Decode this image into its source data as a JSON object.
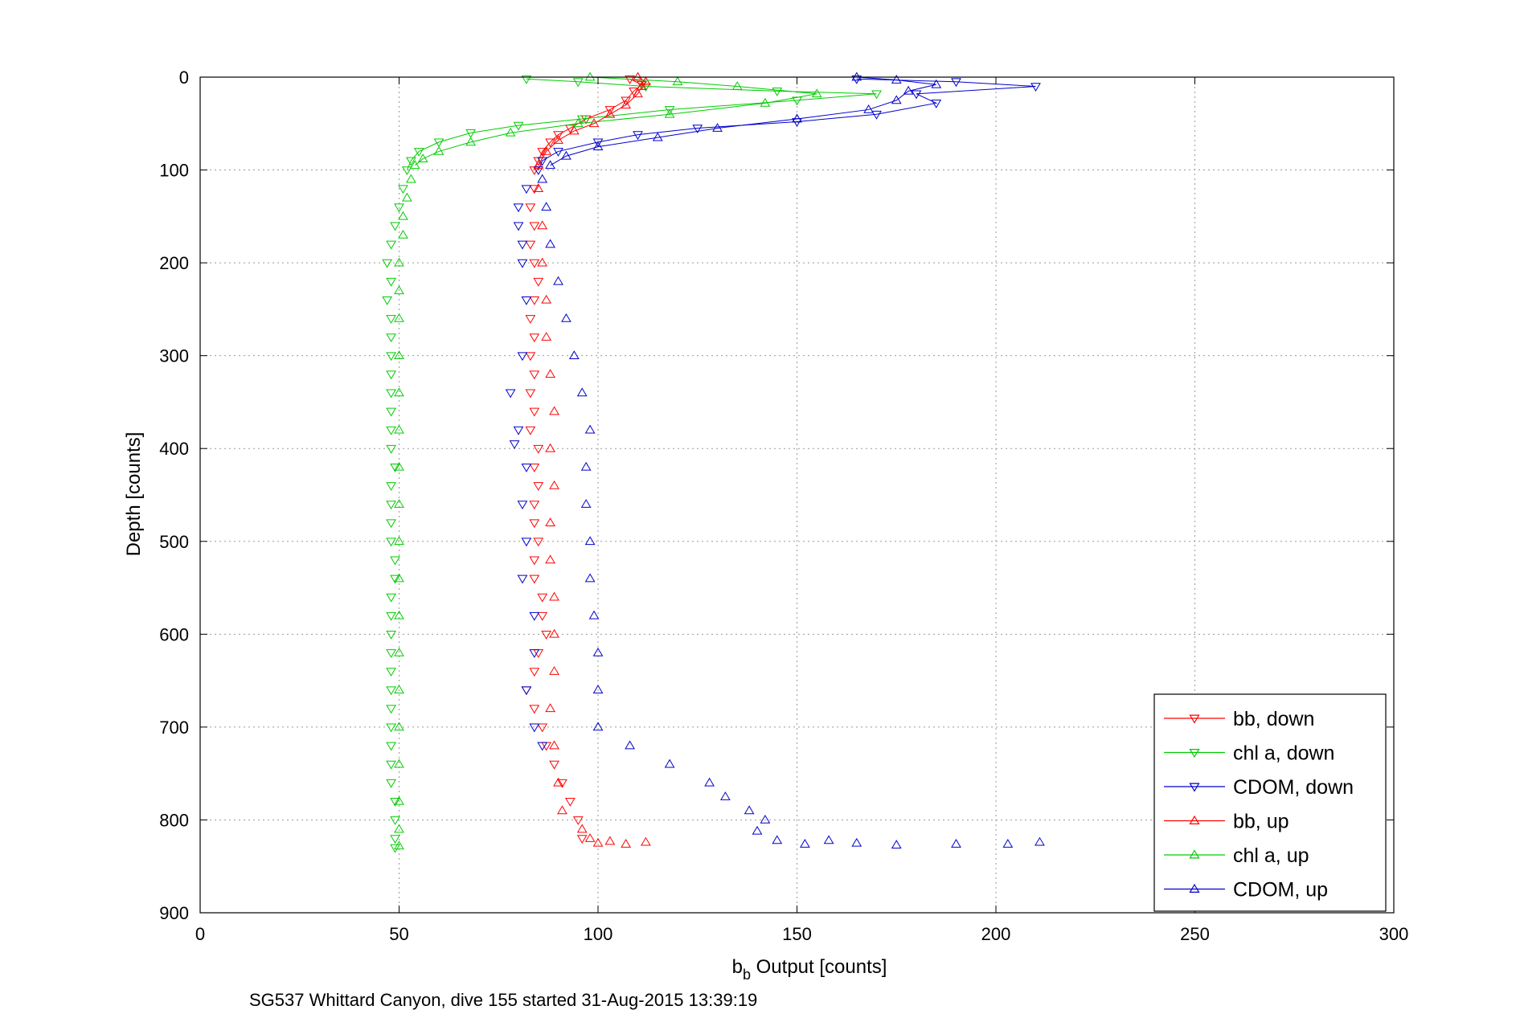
{
  "chart_data": {
    "type": "scatter",
    "xlabel_main": "b",
    "xlabel_sub": "b",
    "xlabel_rest": " Output [counts]",
    "ylabel": "Depth [counts]",
    "caption": "SG537 Whittard Canyon, dive 155 started 31-Aug-2015 13:39:19",
    "xlim": [
      0,
      300
    ],
    "ylim": [
      0,
      900
    ],
    "y_reversed": true,
    "grid": true,
    "legend_position": "bottom-right",
    "x_ticks": [
      0,
      50,
      100,
      150,
      200,
      250,
      300
    ],
    "y_ticks": [
      0,
      100,
      200,
      300,
      400,
      500,
      600,
      700,
      800,
      900
    ],
    "series": [
      {
        "name": "bb, down",
        "color": "#ff0000",
        "marker": "down-triangle",
        "points": [
          [
            108,
            2
          ],
          [
            111,
            8
          ],
          [
            109,
            15
          ],
          [
            107,
            25
          ],
          [
            103,
            35
          ],
          [
            97,
            45
          ],
          [
            93,
            55
          ],
          [
            90,
            62
          ],
          [
            88,
            70
          ],
          [
            86,
            80
          ],
          [
            85,
            90
          ],
          [
            84,
            100
          ],
          [
            84,
            120
          ],
          [
            83,
            140
          ],
          [
            84,
            160
          ],
          [
            83,
            180
          ],
          [
            84,
            200
          ],
          [
            85,
            220
          ],
          [
            84,
            240
          ],
          [
            83,
            260
          ],
          [
            84,
            280
          ],
          [
            83,
            300
          ],
          [
            84,
            320
          ],
          [
            83,
            340
          ],
          [
            84,
            360
          ],
          [
            83,
            380
          ],
          [
            85,
            400
          ],
          [
            84,
            420
          ],
          [
            85,
            440
          ],
          [
            84,
            460
          ],
          [
            84,
            480
          ],
          [
            85,
            500
          ],
          [
            84,
            520
          ],
          [
            84,
            540
          ],
          [
            86,
            560
          ],
          [
            86,
            580
          ],
          [
            87,
            600
          ],
          [
            85,
            620
          ],
          [
            84,
            640
          ],
          [
            82,
            660
          ],
          [
            84,
            680
          ],
          [
            86,
            700
          ],
          [
            87,
            720
          ],
          [
            89,
            740
          ],
          [
            91,
            760
          ],
          [
            93,
            780
          ],
          [
            95,
            800
          ],
          [
            96,
            820
          ]
        ]
      },
      {
        "name": "chl a, down",
        "color": "#00cc00",
        "marker": "down-triangle",
        "points": [
          [
            82,
            2
          ],
          [
            95,
            5
          ],
          [
            112,
            10
          ],
          [
            145,
            15
          ],
          [
            170,
            18
          ],
          [
            150,
            25
          ],
          [
            118,
            35
          ],
          [
            96,
            45
          ],
          [
            80,
            52
          ],
          [
            68,
            60
          ],
          [
            60,
            70
          ],
          [
            55,
            80
          ],
          [
            53,
            90
          ],
          [
            52,
            100
          ],
          [
            51,
            120
          ],
          [
            50,
            140
          ],
          [
            49,
            160
          ],
          [
            48,
            180
          ],
          [
            47,
            200
          ],
          [
            48,
            220
          ],
          [
            47,
            240
          ],
          [
            48,
            260
          ],
          [
            48,
            280
          ],
          [
            48,
            300
          ],
          [
            48,
            320
          ],
          [
            48,
            340
          ],
          [
            48,
            360
          ],
          [
            48,
            380
          ],
          [
            48,
            400
          ],
          [
            49,
            420
          ],
          [
            48,
            440
          ],
          [
            48,
            460
          ],
          [
            48,
            480
          ],
          [
            48,
            500
          ],
          [
            49,
            520
          ],
          [
            49,
            540
          ],
          [
            48,
            560
          ],
          [
            48,
            580
          ],
          [
            48,
            600
          ],
          [
            48,
            620
          ],
          [
            48,
            640
          ],
          [
            48,
            660
          ],
          [
            48,
            680
          ],
          [
            48,
            700
          ],
          [
            48,
            720
          ],
          [
            48,
            740
          ],
          [
            48,
            760
          ],
          [
            49,
            780
          ],
          [
            49,
            800
          ],
          [
            49,
            820
          ],
          [
            49,
            830
          ]
        ]
      },
      {
        "name": "CDOM, down",
        "color": "#0000cc",
        "marker": "down-triangle",
        "points": [
          [
            165,
            2
          ],
          [
            190,
            5
          ],
          [
            210,
            10
          ],
          [
            180,
            18
          ],
          [
            185,
            28
          ],
          [
            170,
            40
          ],
          [
            150,
            48
          ],
          [
            125,
            55
          ],
          [
            110,
            62
          ],
          [
            100,
            70
          ],
          [
            90,
            80
          ],
          [
            86,
            90
          ],
          [
            85,
            100
          ],
          [
            82,
            120
          ],
          [
            80,
            140
          ],
          [
            80,
            160
          ],
          [
            81,
            180
          ],
          [
            81,
            200
          ],
          [
            82,
            240
          ],
          [
            81,
            300
          ],
          [
            78,
            340
          ],
          [
            80,
            380
          ],
          [
            79,
            395
          ],
          [
            82,
            420
          ],
          [
            81,
            460
          ],
          [
            82,
            500
          ],
          [
            81,
            540
          ],
          [
            84,
            580
          ],
          [
            84,
            620
          ],
          [
            82,
            660
          ],
          [
            84,
            700
          ],
          [
            86,
            720
          ]
        ]
      },
      {
        "name": "bb, up",
        "color": "#ff0000",
        "marker": "up-triangle",
        "points": [
          [
            110,
            0
          ],
          [
            112,
            5
          ],
          [
            111,
            10
          ],
          [
            110,
            18
          ],
          [
            107,
            30
          ],
          [
            103,
            40
          ],
          [
            99,
            50
          ],
          [
            94,
            58
          ],
          [
            90,
            68
          ],
          [
            87,
            80
          ],
          [
            85,
            95
          ],
          [
            85,
            120
          ],
          [
            86,
            160
          ],
          [
            86,
            200
          ],
          [
            87,
            240
          ],
          [
            87,
            280
          ],
          [
            88,
            320
          ],
          [
            89,
            360
          ],
          [
            88,
            400
          ],
          [
            89,
            440
          ],
          [
            88,
            480
          ],
          [
            88,
            520
          ],
          [
            89,
            560
          ],
          [
            89,
            600
          ],
          [
            89,
            640
          ],
          [
            88,
            680
          ],
          [
            89,
            720
          ],
          [
            90,
            760
          ],
          [
            91,
            790
          ],
          [
            96,
            810
          ],
          [
            98,
            820
          ],
          [
            100,
            825
          ],
          [
            103,
            823
          ],
          [
            107,
            826
          ],
          [
            112,
            824
          ]
        ]
      },
      {
        "name": "chl a, up",
        "color": "#00cc00",
        "marker": "up-triangle",
        "points": [
          [
            98,
            0
          ],
          [
            120,
            5
          ],
          [
            135,
            10
          ],
          [
            155,
            18
          ],
          [
            142,
            28
          ],
          [
            118,
            40
          ],
          [
            95,
            50
          ],
          [
            78,
            60
          ],
          [
            68,
            70
          ],
          [
            60,
            80
          ],
          [
            56,
            88
          ],
          [
            54,
            95
          ],
          [
            53,
            110
          ],
          [
            52,
            130
          ],
          [
            51,
            150
          ],
          [
            51,
            170
          ],
          [
            50,
            200
          ],
          [
            50,
            230
          ],
          [
            50,
            260
          ],
          [
            50,
            300
          ],
          [
            50,
            340
          ],
          [
            50,
            380
          ],
          [
            50,
            420
          ],
          [
            50,
            460
          ],
          [
            50,
            500
          ],
          [
            50,
            540
          ],
          [
            50,
            580
          ],
          [
            50,
            620
          ],
          [
            50,
            660
          ],
          [
            50,
            700
          ],
          [
            50,
            740
          ],
          [
            50,
            780
          ],
          [
            50,
            810
          ],
          [
            50,
            828
          ]
        ]
      },
      {
        "name": "CDOM, up",
        "color": "#0000cc",
        "marker": "up-triangle",
        "points": [
          [
            165,
            0
          ],
          [
            175,
            3
          ],
          [
            185,
            8
          ],
          [
            178,
            15
          ],
          [
            175,
            25
          ],
          [
            168,
            35
          ],
          [
            150,
            45
          ],
          [
            130,
            55
          ],
          [
            115,
            65
          ],
          [
            100,
            75
          ],
          [
            92,
            85
          ],
          [
            88,
            95
          ],
          [
            86,
            110
          ],
          [
            87,
            140
          ],
          [
            88,
            180
          ],
          [
            90,
            220
          ],
          [
            92,
            260
          ],
          [
            94,
            300
          ],
          [
            96,
            340
          ],
          [
            98,
            380
          ],
          [
            97,
            420
          ],
          [
            97,
            460
          ],
          [
            98,
            500
          ],
          [
            98,
            540
          ],
          [
            99,
            580
          ],
          [
            100,
            620
          ],
          [
            100,
            660
          ],
          [
            100,
            700
          ],
          [
            108,
            720
          ],
          [
            118,
            740
          ],
          [
            128,
            760
          ],
          [
            132,
            775
          ],
          [
            138,
            790
          ],
          [
            142,
            800
          ],
          [
            140,
            812
          ],
          [
            145,
            822
          ],
          [
            152,
            826
          ],
          [
            158,
            822
          ],
          [
            165,
            825
          ],
          [
            175,
            827
          ],
          [
            190,
            826
          ],
          [
            203,
            826
          ],
          [
            211,
            824
          ]
        ]
      }
    ]
  }
}
